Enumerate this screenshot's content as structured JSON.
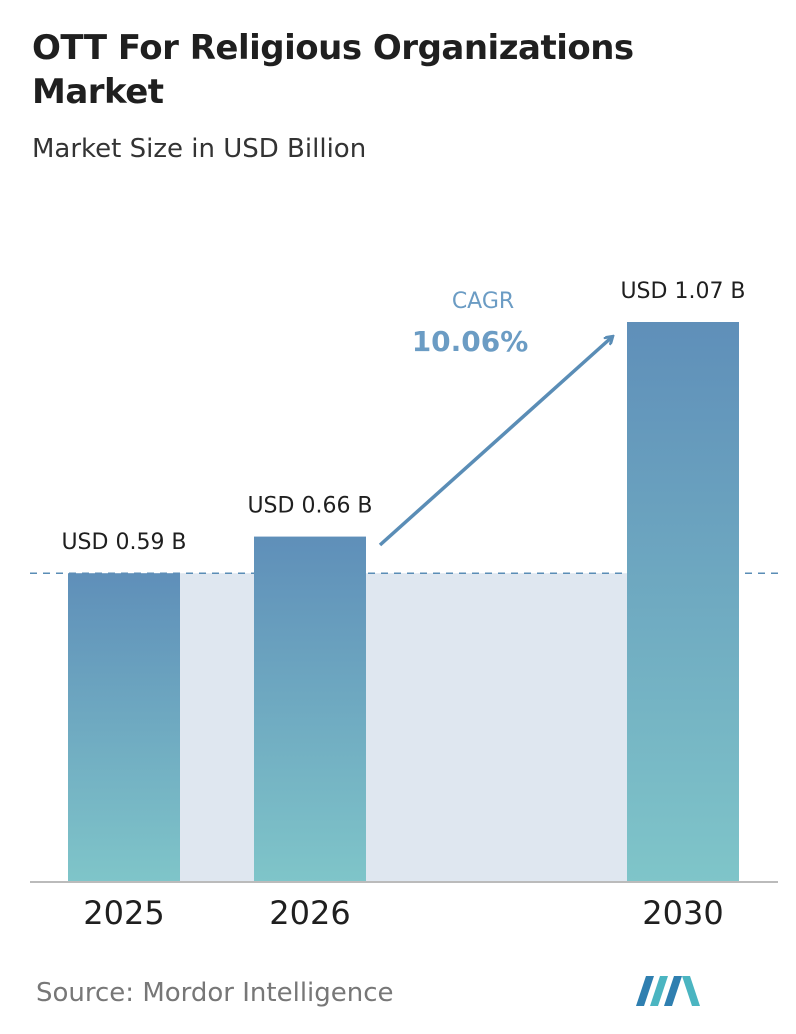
{
  "chart_data": {
    "type": "bar",
    "title": "OTT For Religious Organizations Market",
    "subtitle": "Market Size in USD Billion",
    "categories": [
      "2025",
      "2026",
      "2030"
    ],
    "values": [
      0.59,
      0.66,
      1.07
    ],
    "value_labels": [
      "USD 0.59 B",
      "USD 0.66 B",
      "USD 1.07 B"
    ],
    "annotation": {
      "label": "CAGR",
      "value": "10.06%"
    },
    "source": "Source: Mordor Intelligence"
  }
}
